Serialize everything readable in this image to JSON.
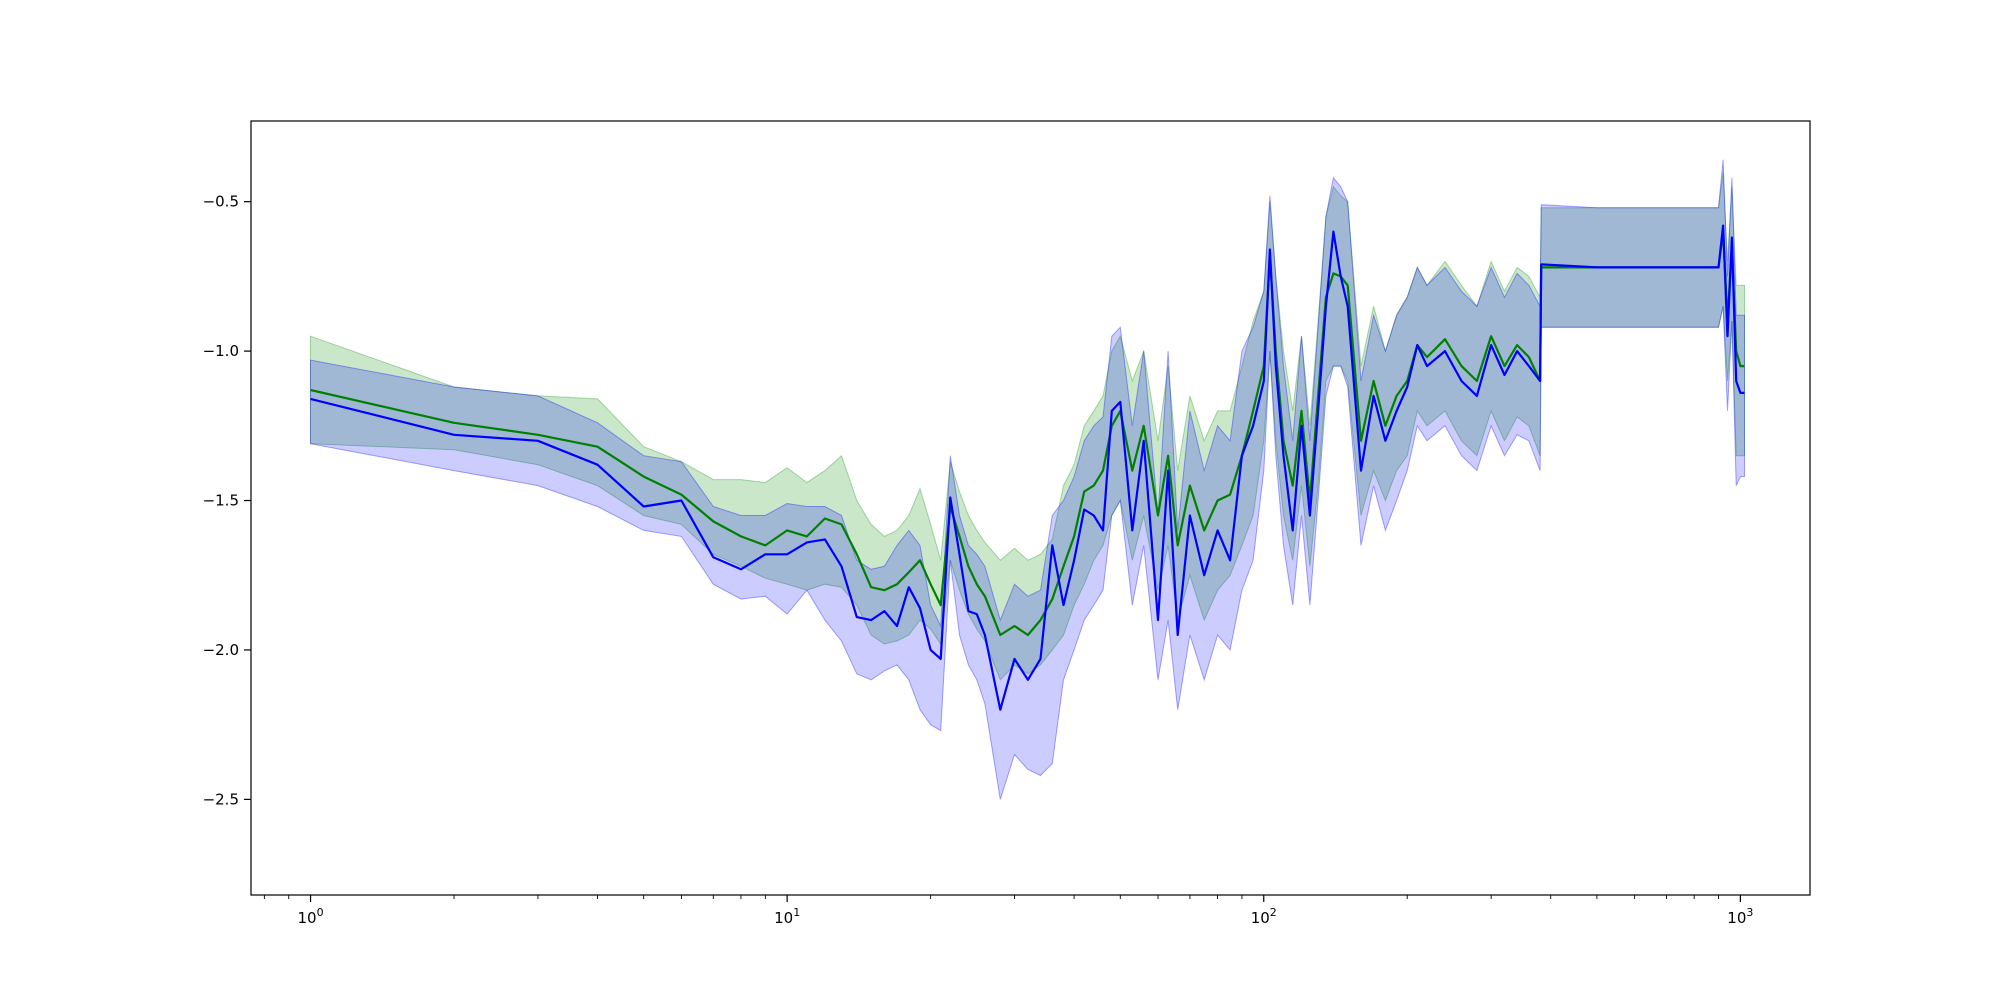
{
  "chart_data": {
    "type": "line",
    "title": "",
    "xlabel": "",
    "ylabel": "",
    "x_scale": "log",
    "xlim": [
      0.75,
      1400
    ],
    "ylim": [
      -2.82,
      -0.23
    ],
    "grid": false,
    "legend": "none",
    "x_ticks": [
      {
        "value": 1,
        "label": "10^0",
        "base": "10",
        "exp": "0"
      },
      {
        "value": 10,
        "label": "10^1",
        "base": "10",
        "exp": "1"
      },
      {
        "value": 100,
        "label": "10^2",
        "base": "10",
        "exp": "2"
      },
      {
        "value": 1000,
        "label": "10^3",
        "base": "10",
        "exp": "3"
      }
    ],
    "y_ticks": [
      {
        "value": -0.5,
        "label": "−0.5"
      },
      {
        "value": -1.0,
        "label": "−1.0"
      },
      {
        "value": -1.5,
        "label": "−1.5"
      },
      {
        "value": -2.0,
        "label": "−2.0"
      },
      {
        "value": -2.5,
        "label": "−2.5"
      }
    ],
    "series": [
      {
        "color": "#008000",
        "band_color": "#2ca02c",
        "band_opacity": 0.25,
        "x": [
          1,
          2,
          3,
          4,
          5,
          6,
          7,
          8,
          9,
          10,
          11,
          12,
          13,
          14,
          15,
          16,
          17,
          18,
          19,
          20,
          21,
          22,
          23,
          24,
          25,
          26,
          28,
          30,
          32,
          34,
          36,
          38,
          40,
          42,
          44,
          46,
          48,
          50,
          53,
          56,
          60,
          63,
          66,
          70,
          75,
          80,
          85,
          90,
          95,
          100,
          103,
          106,
          110,
          115,
          120,
          125,
          130,
          135,
          140,
          145,
          150,
          160,
          170,
          180,
          190,
          200,
          210,
          220,
          240,
          260,
          280,
          300,
          320,
          340,
          360,
          380,
          382,
          500,
          700,
          900,
          920,
          940,
          960,
          980,
          1000,
          1020
        ],
        "y": [
          -1.13,
          -1.24,
          -1.28,
          -1.32,
          -1.42,
          -1.48,
          -1.57,
          -1.62,
          -1.65,
          -1.6,
          -1.62,
          -1.56,
          -1.58,
          -1.68,
          -1.79,
          -1.8,
          -1.78,
          -1.74,
          -1.7,
          -1.78,
          -1.85,
          -1.52,
          -1.62,
          -1.72,
          -1.78,
          -1.82,
          -1.95,
          -1.92,
          -1.95,
          -1.9,
          -1.83,
          -1.72,
          -1.62,
          -1.47,
          -1.45,
          -1.4,
          -1.25,
          -1.2,
          -1.4,
          -1.25,
          -1.55,
          -1.35,
          -1.65,
          -1.45,
          -1.6,
          -1.5,
          -1.48,
          -1.35,
          -1.2,
          -1.05,
          -0.68,
          -1.0,
          -1.3,
          -1.45,
          -1.2,
          -1.5,
          -1.15,
          -0.82,
          -0.74,
          -0.75,
          -0.78,
          -1.3,
          -1.1,
          -1.25,
          -1.15,
          -1.1,
          -0.98,
          -1.02,
          -0.96,
          -1.05,
          -1.1,
          -0.95,
          -1.05,
          -0.98,
          -1.02,
          -1.1,
          -0.72,
          -0.72,
          -0.72,
          -0.72,
          -0.6,
          -0.9,
          -0.65,
          -1.0,
          -1.05,
          -1.05
        ],
        "lower": [
          -1.31,
          -1.33,
          -1.38,
          -1.45,
          -1.55,
          -1.58,
          -1.68,
          -1.72,
          -1.76,
          -1.78,
          -1.8,
          -1.78,
          -1.79,
          -1.85,
          -1.95,
          -1.98,
          -1.97,
          -1.95,
          -1.9,
          -1.93,
          -1.98,
          -1.7,
          -1.8,
          -1.88,
          -1.93,
          -1.97,
          -2.1,
          -2.05,
          -2.08,
          -2.05,
          -2.0,
          -1.95,
          -1.85,
          -1.78,
          -1.7,
          -1.65,
          -1.55,
          -1.5,
          -1.7,
          -1.55,
          -1.8,
          -1.65,
          -1.9,
          -1.75,
          -1.9,
          -1.8,
          -1.75,
          -1.65,
          -1.55,
          -1.3,
          -1.0,
          -1.3,
          -1.55,
          -1.7,
          -1.45,
          -1.72,
          -1.45,
          -1.1,
          -1.05,
          -1.05,
          -1.1,
          -1.55,
          -1.4,
          -1.5,
          -1.4,
          -1.35,
          -1.2,
          -1.25,
          -1.2,
          -1.3,
          -1.35,
          -1.2,
          -1.3,
          -1.22,
          -1.25,
          -1.35,
          -0.92,
          -0.92,
          -0.92,
          -0.92,
          -0.85,
          -1.1,
          -0.9,
          -1.35,
          -1.35,
          -1.35
        ],
        "upper": [
          -0.95,
          -1.12,
          -1.15,
          -1.16,
          -1.32,
          -1.37,
          -1.43,
          -1.43,
          -1.44,
          -1.39,
          -1.44,
          -1.4,
          -1.35,
          -1.5,
          -1.58,
          -1.62,
          -1.6,
          -1.55,
          -1.46,
          -1.58,
          -1.7,
          -1.37,
          -1.47,
          -1.55,
          -1.6,
          -1.64,
          -1.7,
          -1.66,
          -1.7,
          -1.68,
          -1.63,
          -1.45,
          -1.38,
          -1.25,
          -1.2,
          -1.15,
          -1.0,
          -0.95,
          -1.1,
          -1.0,
          -1.3,
          -1.05,
          -1.4,
          -1.15,
          -1.3,
          -1.2,
          -1.2,
          -1.05,
          -0.9,
          -0.8,
          -0.5,
          -0.75,
          -1.0,
          -1.2,
          -0.95,
          -1.25,
          -0.9,
          -0.55,
          -0.45,
          -0.48,
          -0.5,
          -1.05,
          -0.85,
          -1.0,
          -0.88,
          -0.82,
          -0.72,
          -0.78,
          -0.7,
          -0.78,
          -0.85,
          -0.7,
          -0.8,
          -0.72,
          -0.75,
          -0.82,
          -0.52,
          -0.52,
          -0.52,
          -0.52,
          -0.4,
          -0.7,
          -0.45,
          -0.78,
          -0.78,
          -0.78
        ]
      },
      {
        "color": "#0000ff",
        "band_color": "#0000ff",
        "band_opacity": 0.2,
        "x": [
          1,
          2,
          3,
          4,
          5,
          6,
          7,
          8,
          9,
          10,
          11,
          12,
          13,
          14,
          15,
          16,
          17,
          18,
          19,
          20,
          21,
          22,
          23,
          24,
          25,
          26,
          28,
          30,
          32,
          34,
          36,
          38,
          40,
          42,
          44,
          46,
          48,
          50,
          53,
          56,
          60,
          63,
          66,
          70,
          75,
          80,
          85,
          90,
          95,
          100,
          103,
          106,
          110,
          115,
          120,
          125,
          130,
          135,
          140,
          145,
          150,
          160,
          170,
          180,
          190,
          200,
          210,
          220,
          240,
          260,
          280,
          300,
          320,
          340,
          360,
          380,
          382,
          500,
          700,
          900,
          920,
          940,
          960,
          980,
          1000,
          1020
        ],
        "y": [
          -1.16,
          -1.28,
          -1.3,
          -1.38,
          -1.52,
          -1.5,
          -1.69,
          -1.73,
          -1.68,
          -1.68,
          -1.64,
          -1.63,
          -1.72,
          -1.89,
          -1.9,
          -1.87,
          -1.92,
          -1.79,
          -1.86,
          -2.0,
          -2.03,
          -1.49,
          -1.68,
          -1.87,
          -1.88,
          -1.95,
          -2.2,
          -2.03,
          -2.1,
          -2.03,
          -1.65,
          -1.85,
          -1.7,
          -1.53,
          -1.55,
          -1.6,
          -1.2,
          -1.17,
          -1.6,
          -1.3,
          -1.9,
          -1.4,
          -1.95,
          -1.55,
          -1.75,
          -1.6,
          -1.7,
          -1.35,
          -1.25,
          -1.1,
          -0.66,
          -1.05,
          -1.35,
          -1.6,
          -1.25,
          -1.55,
          -1.2,
          -0.85,
          -0.6,
          -0.75,
          -0.85,
          -1.4,
          -1.15,
          -1.3,
          -1.2,
          -1.12,
          -0.98,
          -1.05,
          -1.0,
          -1.1,
          -1.15,
          -0.98,
          -1.08,
          -1.0,
          -1.05,
          -1.1,
          -0.71,
          -0.72,
          -0.72,
          -0.72,
          -0.58,
          -0.95,
          -0.62,
          -1.1,
          -1.14,
          -1.14
        ],
        "lower": [
          -1.31,
          -1.4,
          -1.45,
          -1.52,
          -1.6,
          -1.62,
          -1.78,
          -1.83,
          -1.82,
          -1.88,
          -1.8,
          -1.9,
          -1.97,
          -2.08,
          -2.1,
          -2.07,
          -2.05,
          -2.1,
          -2.2,
          -2.25,
          -2.27,
          -1.7,
          -1.95,
          -2.05,
          -2.1,
          -2.18,
          -2.5,
          -2.35,
          -2.4,
          -2.42,
          -2.38,
          -2.1,
          -2.0,
          -1.9,
          -1.85,
          -1.8,
          -1.55,
          -1.5,
          -1.85,
          -1.65,
          -2.1,
          -1.9,
          -2.2,
          -1.95,
          -2.1,
          -1.95,
          -2.0,
          -1.8,
          -1.7,
          -1.4,
          -1.0,
          -1.35,
          -1.65,
          -1.85,
          -1.55,
          -1.85,
          -1.5,
          -1.15,
          -1.05,
          -1.05,
          -1.12,
          -1.65,
          -1.45,
          -1.6,
          -1.5,
          -1.4,
          -1.25,
          -1.3,
          -1.25,
          -1.35,
          -1.4,
          -1.25,
          -1.35,
          -1.28,
          -1.3,
          -1.4,
          -0.92,
          -0.92,
          -0.92,
          -0.92,
          -0.85,
          -1.2,
          -0.9,
          -1.45,
          -1.42,
          -1.42
        ],
        "upper": [
          -1.03,
          -1.12,
          -1.15,
          -1.24,
          -1.35,
          -1.37,
          -1.52,
          -1.55,
          -1.55,
          -1.51,
          -1.52,
          -1.52,
          -1.55,
          -1.7,
          -1.73,
          -1.72,
          -1.65,
          -1.6,
          -1.65,
          -1.85,
          -1.92,
          -1.35,
          -1.55,
          -1.65,
          -1.68,
          -1.72,
          -1.9,
          -1.78,
          -1.82,
          -1.8,
          -1.55,
          -1.5,
          -1.42,
          -1.3,
          -1.25,
          -1.22,
          -0.95,
          -0.92,
          -1.25,
          -1.0,
          -1.55,
          -1.0,
          -1.6,
          -1.2,
          -1.4,
          -1.25,
          -1.3,
          -1.0,
          -0.92,
          -0.8,
          -0.48,
          -0.75,
          -1.05,
          -1.3,
          -0.95,
          -1.3,
          -0.92,
          -0.55,
          -0.42,
          -0.45,
          -0.5,
          -1.1,
          -0.88,
          -1.0,
          -0.88,
          -0.82,
          -0.72,
          -0.78,
          -0.72,
          -0.8,
          -0.85,
          -0.72,
          -0.82,
          -0.74,
          -0.78,
          -0.85,
          -0.51,
          -0.52,
          -0.52,
          -0.52,
          -0.36,
          -0.75,
          -0.42,
          -0.88,
          -0.88,
          -0.88
        ]
      }
    ]
  }
}
